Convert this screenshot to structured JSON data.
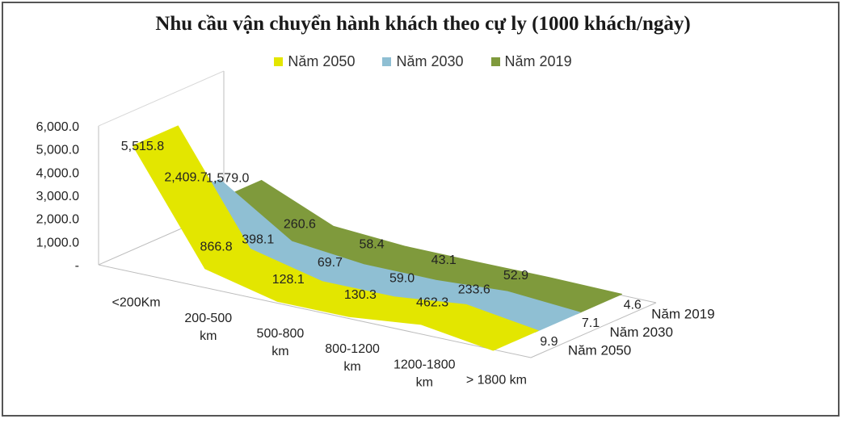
{
  "chart_data": {
    "type": "line",
    "title": "Nhu cầu vận chuyển hành khách theo cự ly (1000 khách/ngày)",
    "categories": [
      "<200Km",
      "200-500 km",
      "500-800 km",
      "800-1200 km",
      "1200-1800 km",
      "> 1800 km"
    ],
    "category_lines": [
      [
        "<200Km"
      ],
      [
        "200-500",
        "km"
      ],
      [
        "500-800",
        "km"
      ],
      [
        "800-1200",
        "km"
      ],
      [
        "1200-1800",
        "km"
      ],
      [
        "> 1800 km"
      ]
    ],
    "y_ticks": [
      "6,000.0",
      "5,000.0",
      "4,000.0",
      "3,000.0",
      "2,000.0",
      "1,000.0",
      "-"
    ],
    "ylim": [
      0,
      6000
    ],
    "depth_labels": [
      "Năm 2050",
      "Năm 2030",
      "Năm 2019"
    ],
    "legend_position": "top",
    "series": [
      {
        "name": "Năm 2050",
        "color": "#e3e600",
        "values": [
          5515.8,
          866.8,
          128.1,
          130.3,
          462.3,
          9.9
        ],
        "labels": [
          "5,515.8",
          "866.8",
          "128.1",
          "130.3",
          "462.3",
          "9.9"
        ]
      },
      {
        "name": "Năm 2030",
        "color": "#8fbfd3",
        "values": [
          2409.7,
          398.1,
          69.7,
          59.0,
          233.6,
          7.1
        ],
        "labels": [
          "2,409.7",
          "398.1",
          "69.7",
          "59.0",
          "233.6",
          "7.1"
        ]
      },
      {
        "name": "Năm 2019",
        "color": "#7f9a3c",
        "values": [
          1579.0,
          260.6,
          58.4,
          43.1,
          52.9,
          4.6
        ],
        "labels": [
          "1,579.0",
          "260.6",
          "58.4",
          "43.1",
          "52.9",
          "4.6"
        ]
      }
    ]
  }
}
